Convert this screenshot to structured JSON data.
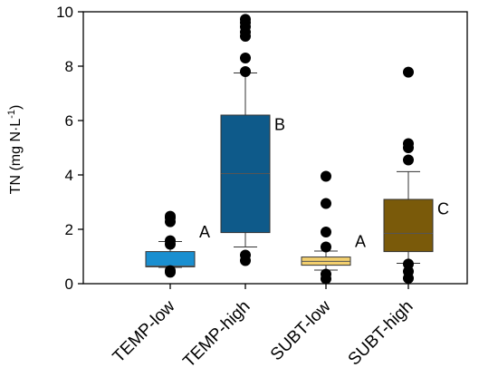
{
  "chart_data": {
    "type": "box",
    "ylabel": {
      "main": "TN (mg N·L",
      "sup": "-1",
      "close": ")"
    },
    "xlabel": "",
    "ylim": [
      0,
      10
    ],
    "yticks": [
      "0",
      "2",
      "4",
      "6",
      "8",
      "10"
    ],
    "grid": false,
    "categories": [
      "TEMP-low",
      "TEMP-high",
      "SUBT-low",
      "SUBT-high"
    ],
    "boxes": [
      {
        "category": "TEMP-low",
        "color": "#1a8fd0",
        "whisker_low": 0.6,
        "q1": 0.62,
        "median": 0.65,
        "q3": 1.18,
        "whisker_high": 1.55,
        "outliers": [
          0.42,
          0.48,
          1.45,
          1.58,
          2.28,
          2.42,
          2.48
        ],
        "letter": "A"
      },
      {
        "category": "TEMP-high",
        "color": "#0e5a8a",
        "whisker_low": 1.35,
        "q1": 1.88,
        "median": 4.05,
        "q3": 6.2,
        "whisker_high": 7.75,
        "outliers": [
          0.85,
          1.05,
          7.8,
          8.3,
          9.1,
          9.25,
          9.45,
          9.6,
          9.72
        ],
        "letter": "B"
      },
      {
        "category": "SUBT-low",
        "color": "#f2cf6e",
        "whisker_low": 0.5,
        "q1": 0.68,
        "median": 0.82,
        "q3": 0.98,
        "whisker_high": 1.2,
        "outliers": [
          0.18,
          0.35,
          1.35,
          1.9,
          2.95,
          3.95
        ],
        "letter": "A"
      },
      {
        "category": "SUBT-high",
        "color": "#7a5a0a",
        "whisker_low": 0.75,
        "q1": 1.18,
        "median": 1.85,
        "q3": 3.1,
        "whisker_high": 4.12,
        "outliers": [
          0.2,
          0.45,
          0.72,
          4.55,
          5.0,
          5.15,
          7.78
        ],
        "letter": "C"
      }
    ]
  }
}
